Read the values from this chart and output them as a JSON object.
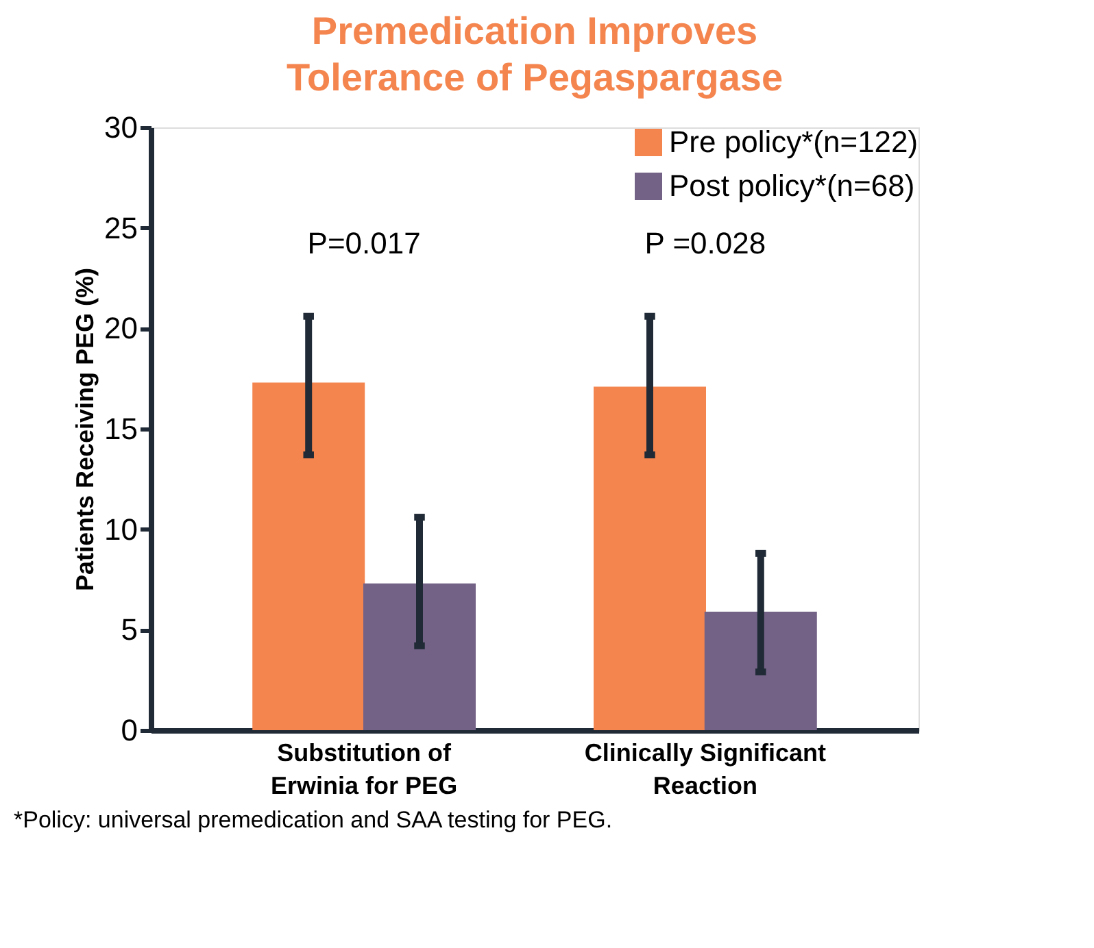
{
  "chart_data": {
    "type": "bar",
    "title": "Premedication Improves\nTolerance of Pegaspargase",
    "ylabel": "Patients Receiving PEG (%)",
    "categories": [
      "Substitution of\nErwinia for PEG",
      "Clinically Significant\nReaction"
    ],
    "series": [
      {
        "name": "Pre policy*(n=122)",
        "color": "#f4854f",
        "values": [
          17.3,
          17.1
        ],
        "errors": [
          [
            13.7,
            20.6
          ],
          [
            13.7,
            20.6
          ]
        ]
      },
      {
        "name": "Post policy*(n=68)",
        "color": "#736286",
        "values": [
          7.3,
          5.9
        ],
        "errors": [
          [
            4.2,
            10.6
          ],
          [
            2.9,
            8.8
          ]
        ]
      }
    ],
    "ylim": [
      0,
      30
    ],
    "yticks": [
      0,
      5,
      10,
      15,
      20,
      25,
      30
    ],
    "grid": false,
    "legend": "top right",
    "annotations": [
      "P=0.017",
      "P =0.028",
      "*Policy: universal premedication and SAA testing for PEG."
    ]
  }
}
